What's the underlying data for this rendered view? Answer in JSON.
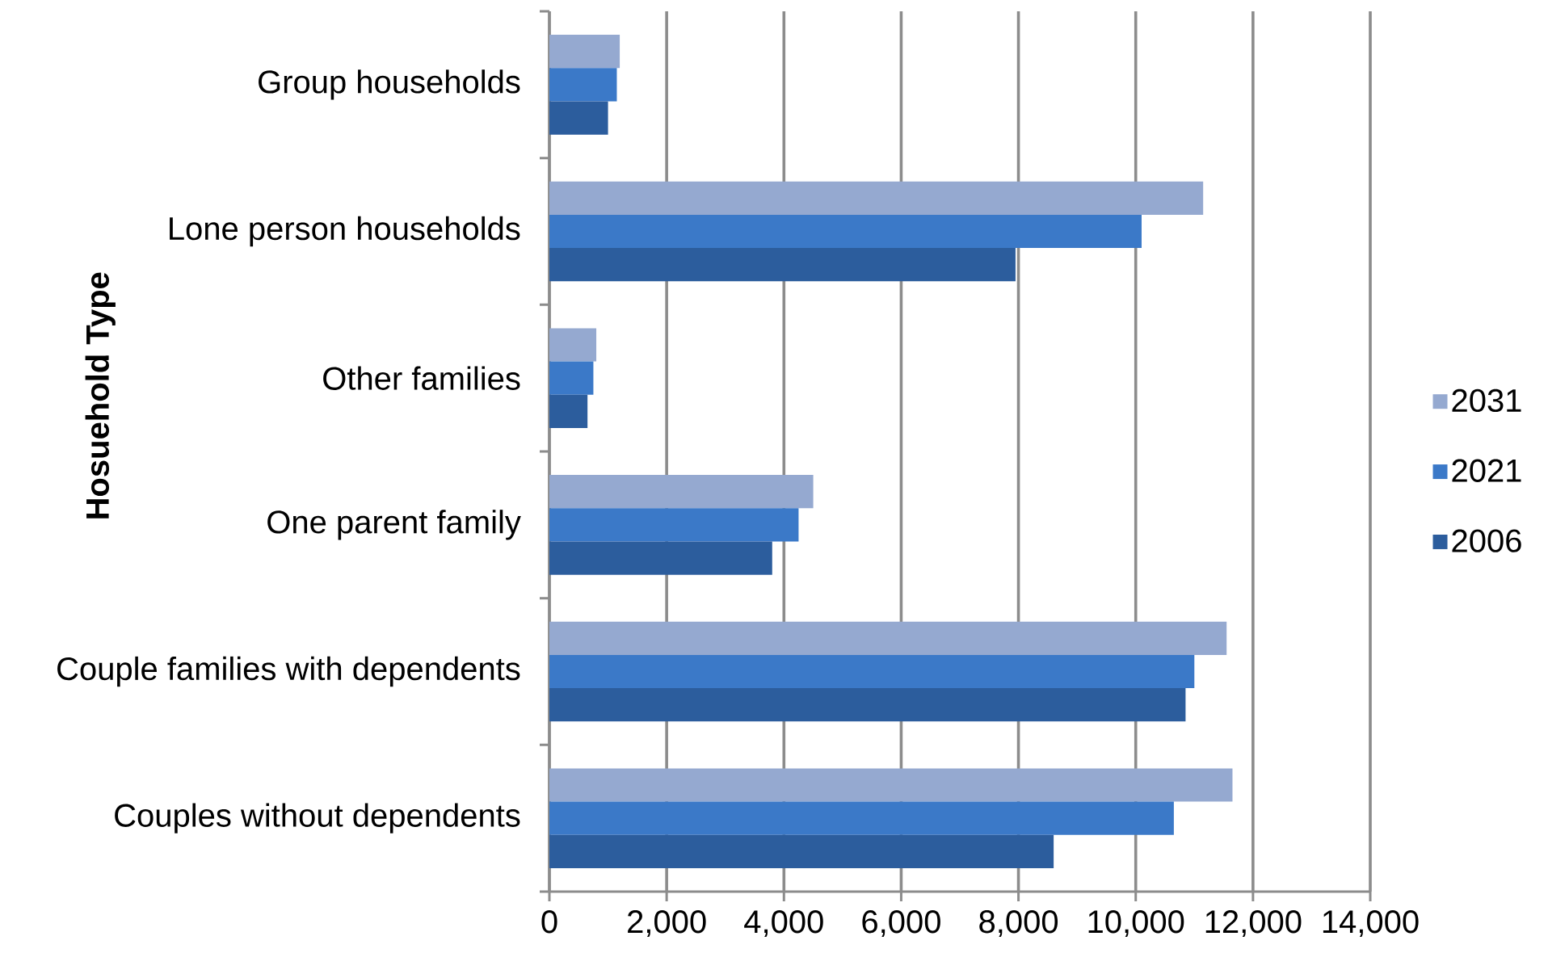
{
  "chart_data": {
    "type": "bar",
    "orientation": "horizontal",
    "ylabel": "Hosuehold Type",
    "categories": [
      "Group households",
      "Lone person households",
      "Other families",
      "One parent family",
      "Couple families with dependents",
      "Couples without dependents"
    ],
    "series": [
      {
        "name": "2031",
        "color": "#95a9d0",
        "values": [
          1200,
          11150,
          800,
          4500,
          11550,
          11650
        ]
      },
      {
        "name": "2021",
        "color": "#3b79c8",
        "values": [
          1150,
          10100,
          750,
          4250,
          11000,
          10650
        ]
      },
      {
        "name": "2006",
        "color": "#2c5d9d",
        "values": [
          1000,
          7950,
          650,
          3800,
          10850,
          8600
        ]
      }
    ],
    "xlim": [
      0,
      14000
    ],
    "xticks": [
      0,
      {
        "value": 2000,
        "label": "2,000"
      },
      {
        "value": 4000,
        "label": "4,000"
      },
      {
        "value": 6000,
        "label": "6,000"
      },
      {
        "value": 8000,
        "label": "8,000"
      },
      {
        "value": 10000,
        "label": "10,000"
      },
      {
        "value": 12000,
        "label": "12,000"
      },
      {
        "value": 14000,
        "label": "14,000"
      }
    ],
    "grid": "x",
    "legend": "right"
  }
}
